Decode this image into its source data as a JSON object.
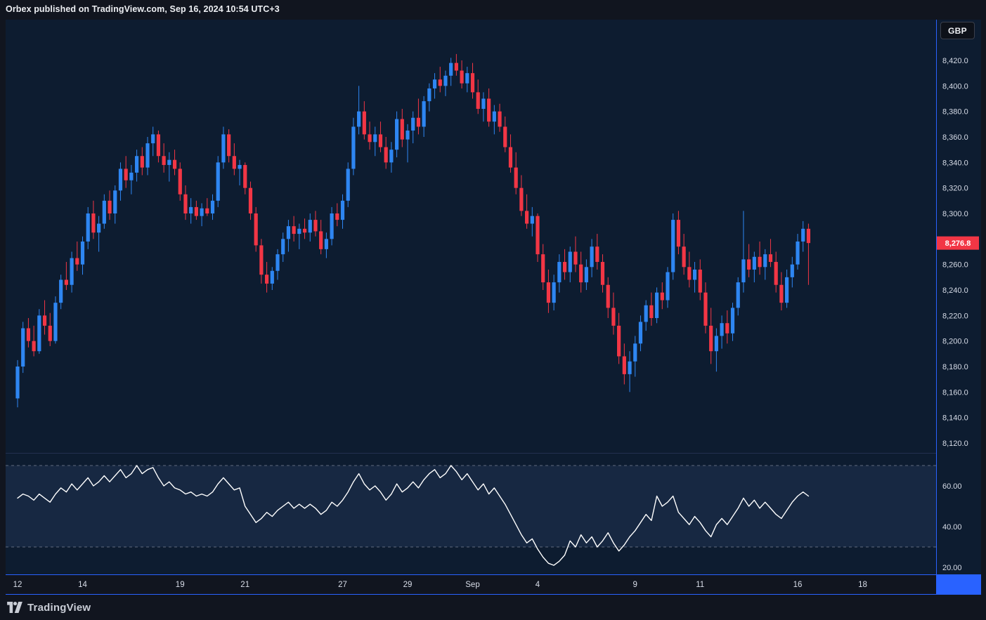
{
  "header": {
    "attribution": "Orbex published on TradingView.com, Sep 16, 2024 10:54 UTC+3"
  },
  "footer": {
    "brand": "TradingView"
  },
  "chart_data": {
    "type": "candlestick",
    "symbol_currency": "GBP",
    "colors": {
      "pane_bg": "#0d1c30",
      "rsi_band": "rgba(86,110,180,0.14)",
      "separator": "#233050",
      "rsi_level": "#757c8f",
      "rsi_line": "#ffffff",
      "up": "#2e86f2",
      "down": "#f23645",
      "axis_blue": "#2962ff",
      "axis_text": "#d8dde8"
    },
    "price_axis": {
      "min": 8120,
      "max": 8420,
      "ticks": [
        {
          "v": 8420,
          "label": "8,420.0"
        },
        {
          "v": 8400,
          "label": "8,400.0"
        },
        {
          "v": 8380,
          "label": "8,380.0"
        },
        {
          "v": 8360,
          "label": "8,360.0"
        },
        {
          "v": 8340,
          "label": "8,340.0"
        },
        {
          "v": 8320,
          "label": "8,320.0"
        },
        {
          "v": 8300,
          "label": "8,300.0"
        },
        {
          "v": 8280,
          "label": "8,280.0"
        },
        {
          "v": 8260,
          "label": "8,260.0"
        },
        {
          "v": 8240,
          "label": "8,240.0"
        },
        {
          "v": 8220,
          "label": "8,220.0"
        },
        {
          "v": 8200,
          "label": "8,200.0"
        },
        {
          "v": 8180,
          "label": "8,180.0"
        },
        {
          "v": 8160,
          "label": "8,160.0"
        },
        {
          "v": 8140,
          "label": "8,140.0"
        },
        {
          "v": 8120,
          "label": "8,120.0"
        }
      ]
    },
    "last_price": {
      "value": 8276.8,
      "label": "8,276.8",
      "direction": "down"
    },
    "time_labels": [
      {
        "text": "12",
        "i": 0
      },
      {
        "text": "14",
        "i": 12
      },
      {
        "text": "19",
        "i": 30
      },
      {
        "text": "21",
        "i": 42
      },
      {
        "text": "27",
        "i": 60
      },
      {
        "text": "29",
        "i": 72
      },
      {
        "text": "Sep",
        "i": 84
      },
      {
        "text": "4",
        "i": 96
      },
      {
        "text": "9",
        "i": 114
      },
      {
        "text": "11",
        "i": 126
      },
      {
        "text": "16",
        "i": 144
      },
      {
        "text": "18",
        "i": 156
      }
    ],
    "candles": [
      [
        8155,
        8185,
        8148,
        8180
      ],
      [
        8180,
        8215,
        8175,
        8210
      ],
      [
        8210,
        8218,
        8195,
        8200
      ],
      [
        8200,
        8212,
        8188,
        8192
      ],
      [
        8192,
        8225,
        8190,
        8220
      ],
      [
        8220,
        8232,
        8205,
        8212
      ],
      [
        8212,
        8222,
        8196,
        8200
      ],
      [
        8200,
        8235,
        8198,
        8230
      ],
      [
        8230,
        8252,
        8225,
        8248
      ],
      [
        8248,
        8262,
        8240,
        8244
      ],
      [
        8244,
        8270,
        8238,
        8265
      ],
      [
        8265,
        8278,
        8255,
        8260
      ],
      [
        8260,
        8282,
        8252,
        8278
      ],
      [
        8278,
        8305,
        8272,
        8300
      ],
      [
        8300,
        8310,
        8280,
        8285
      ],
      [
        8285,
        8298,
        8270,
        8292
      ],
      [
        8292,
        8315,
        8288,
        8310
      ],
      [
        8310,
        8318,
        8295,
        8300
      ],
      [
        8300,
        8322,
        8292,
        8318
      ],
      [
        8318,
        8340,
        8310,
        8335
      ],
      [
        8335,
        8345,
        8320,
        8326
      ],
      [
        8326,
        8338,
        8315,
        8332
      ],
      [
        8332,
        8350,
        8325,
        8345
      ],
      [
        8345,
        8352,
        8330,
        8336
      ],
      [
        8336,
        8360,
        8330,
        8355
      ],
      [
        8355,
        8368,
        8345,
        8362
      ],
      [
        8362,
        8365,
        8340,
        8345
      ],
      [
        8345,
        8355,
        8332,
        8338
      ],
      [
        8338,
        8348,
        8325,
        8342
      ],
      [
        8342,
        8350,
        8330,
        8335
      ],
      [
        8335,
        8340,
        8310,
        8315
      ],
      [
        8315,
        8322,
        8295,
        8300
      ],
      [
        8300,
        8312,
        8292,
        8305
      ],
      [
        8305,
        8310,
        8295,
        8298
      ],
      [
        8298,
        8308,
        8290,
        8304
      ],
      [
        8304,
        8312,
        8298,
        8300
      ],
      [
        8300,
        8315,
        8295,
        8310
      ],
      [
        8310,
        8345,
        8305,
        8340
      ],
      [
        8340,
        8368,
        8335,
        8362
      ],
      [
        8362,
        8366,
        8340,
        8345
      ],
      [
        8345,
        8355,
        8330,
        8335
      ],
      [
        8335,
        8342,
        8322,
        8338
      ],
      [
        8338,
        8340,
        8315,
        8320
      ],
      [
        8320,
        8325,
        8295,
        8300
      ],
      [
        8300,
        8305,
        8270,
        8275
      ],
      [
        8275,
        8280,
        8245,
        8252
      ],
      [
        8252,
        8262,
        8238,
        8245
      ],
      [
        8245,
        8258,
        8240,
        8255
      ],
      [
        8255,
        8272,
        8248,
        8268
      ],
      [
        8268,
        8285,
        8262,
        8280
      ],
      [
        8280,
        8295,
        8270,
        8290
      ],
      [
        8290,
        8298,
        8278,
        8284
      ],
      [
        8284,
        8292,
        8272,
        8288
      ],
      [
        8288,
        8296,
        8280,
        8285
      ],
      [
        8285,
        8300,
        8278,
        8295
      ],
      [
        8295,
        8302,
        8282,
        8286
      ],
      [
        8286,
        8295,
        8268,
        8272
      ],
      [
        8272,
        8285,
        8265,
        8280
      ],
      [
        8280,
        8305,
        8275,
        8300
      ],
      [
        8300,
        8308,
        8290,
        8295
      ],
      [
        8295,
        8315,
        8288,
        8310
      ],
      [
        8310,
        8340,
        8305,
        8335
      ],
      [
        8335,
        8375,
        8330,
        8368
      ],
      [
        8368,
        8400,
        8362,
        8380
      ],
      [
        8380,
        8388,
        8358,
        8362
      ],
      [
        8362,
        8372,
        8350,
        8356
      ],
      [
        8356,
        8368,
        8345,
        8362
      ],
      [
        8362,
        8372,
        8348,
        8352
      ],
      [
        8352,
        8360,
        8335,
        8340
      ],
      [
        8340,
        8356,
        8332,
        8350
      ],
      [
        8350,
        8380,
        8344,
        8374
      ],
      [
        8374,
        8382,
        8352,
        8358
      ],
      [
        8358,
        8370,
        8340,
        8365
      ],
      [
        8365,
        8380,
        8355,
        8375
      ],
      [
        8375,
        8390,
        8362,
        8368
      ],
      [
        8368,
        8392,
        8360,
        8388
      ],
      [
        8388,
        8402,
        8380,
        8398
      ],
      [
        8398,
        8410,
        8390,
        8405
      ],
      [
        8405,
        8415,
        8395,
        8400
      ],
      [
        8400,
        8412,
        8392,
        8408
      ],
      [
        8408,
        8422,
        8400,
        8418
      ],
      [
        8418,
        8425,
        8408,
        8412
      ],
      [
        8412,
        8420,
        8398,
        8402
      ],
      [
        8402,
        8415,
        8395,
        8410
      ],
      [
        8410,
        8418,
        8390,
        8395
      ],
      [
        8395,
        8405,
        8378,
        8382
      ],
      [
        8382,
        8395,
        8372,
        8390
      ],
      [
        8390,
        8398,
        8368,
        8372
      ],
      [
        8372,
        8385,
        8362,
        8380
      ],
      [
        8380,
        8386,
        8364,
        8368
      ],
      [
        8368,
        8376,
        8348,
        8352
      ],
      [
        8352,
        8362,
        8332,
        8336
      ],
      [
        8336,
        8348,
        8315,
        8320
      ],
      [
        8320,
        8330,
        8298,
        8302
      ],
      [
        8302,
        8315,
        8288,
        8292
      ],
      [
        8292,
        8305,
        8282,
        8298
      ],
      [
        8298,
        8300,
        8262,
        8268
      ],
      [
        8268,
        8276,
        8240,
        8246
      ],
      [
        8246,
        8256,
        8222,
        8230
      ],
      [
        8230,
        8252,
        8224,
        8246
      ],
      [
        8246,
        8268,
        8238,
        8262
      ],
      [
        8262,
        8272,
        8248,
        8254
      ],
      [
        8254,
        8274,
        8246,
        8270
      ],
      [
        8270,
        8282,
        8254,
        8260
      ],
      [
        8260,
        8270,
        8238,
        8246
      ],
      [
        8246,
        8264,
        8240,
        8258
      ],
      [
        8258,
        8280,
        8250,
        8274
      ],
      [
        8274,
        8284,
        8256,
        8262
      ],
      [
        8262,
        8268,
        8238,
        8244
      ],
      [
        8244,
        8250,
        8218,
        8226
      ],
      [
        8226,
        8238,
        8205,
        8212
      ],
      [
        8212,
        8222,
        8182,
        8188
      ],
      [
        8188,
        8198,
        8166,
        8174
      ],
      [
        8174,
        8192,
        8160,
        8184
      ],
      [
        8184,
        8204,
        8172,
        8198
      ],
      [
        8198,
        8220,
        8192,
        8215
      ],
      [
        8215,
        8232,
        8208,
        8228
      ],
      [
        8228,
        8238,
        8212,
        8218
      ],
      [
        8218,
        8242,
        8214,
        8238
      ],
      [
        8238,
        8246,
        8225,
        8232
      ],
      [
        8232,
        8258,
        8226,
        8254
      ],
      [
        8254,
        8300,
        8248,
        8295
      ],
      [
        8295,
        8302,
        8268,
        8274
      ],
      [
        8274,
        8284,
        8252,
        8258
      ],
      [
        8258,
        8270,
        8242,
        8248
      ],
      [
        8248,
        8262,
        8238,
        8256
      ],
      [
        8256,
        8264,
        8232,
        8238
      ],
      [
        8238,
        8246,
        8206,
        8212
      ],
      [
        8212,
        8226,
        8182,
        8192
      ],
      [
        8192,
        8210,
        8176,
        8204
      ],
      [
        8204,
        8220,
        8194,
        8214
      ],
      [
        8214,
        8224,
        8198,
        8206
      ],
      [
        8206,
        8230,
        8200,
        8226
      ],
      [
        8226,
        8250,
        8220,
        8246
      ],
      [
        8246,
        8302,
        8238,
        8264
      ],
      [
        8264,
        8276,
        8250,
        8256
      ],
      [
        8256,
        8270,
        8246,
        8266
      ],
      [
        8266,
        8278,
        8252,
        8258
      ],
      [
        8258,
        8272,
        8248,
        8268
      ],
      [
        8268,
        8280,
        8258,
        8262
      ],
      [
        8262,
        8270,
        8238,
        8244
      ],
      [
        8244,
        8254,
        8224,
        8230
      ],
      [
        8230,
        8256,
        8226,
        8250
      ],
      [
        8250,
        8266,
        8242,
        8260
      ],
      [
        8260,
        8284,
        8256,
        8278
      ],
      [
        8278,
        8294,
        8270,
        8288
      ],
      [
        8288,
        8292,
        8244,
        8276.8
      ]
    ],
    "rsi": {
      "levels": [
        70,
        30
      ],
      "ticks": [
        {
          "v": 60,
          "label": "60.00"
        },
        {
          "v": 40,
          "label": "40.00"
        },
        {
          "v": 20,
          "label": "20.00"
        }
      ],
      "values": [
        54,
        56,
        55,
        53,
        56,
        54,
        52,
        56,
        59,
        57,
        61,
        58,
        61,
        64,
        60,
        62,
        65,
        62,
        65,
        68,
        64,
        66,
        70,
        66,
        68,
        69,
        64,
        60,
        62,
        59,
        58,
        56,
        57,
        55,
        56,
        55,
        57,
        61,
        64,
        61,
        58,
        59,
        50,
        46,
        42,
        44,
        47,
        45,
        48,
        50,
        52,
        49,
        51,
        49,
        51,
        49,
        46,
        48,
        52,
        50,
        53,
        57,
        62,
        66,
        61,
        58,
        60,
        57,
        53,
        56,
        61,
        57,
        59,
        62,
        59,
        63,
        66,
        68,
        64,
        66,
        70,
        67,
        63,
        66,
        62,
        58,
        61,
        56,
        59,
        55,
        51,
        46,
        41,
        36,
        32,
        34,
        29,
        25,
        22,
        21,
        23,
        26,
        33,
        30,
        36,
        32,
        35,
        30,
        33,
        37,
        32,
        28,
        31,
        35,
        38,
        42,
        46,
        43,
        55,
        50,
        52,
        55,
        47,
        44,
        41,
        45,
        42,
        38,
        35,
        41,
        44,
        41,
        45,
        49,
        54,
        50,
        53,
        49,
        52,
        49,
        46,
        44,
        48,
        52,
        55,
        57,
        55
      ]
    }
  }
}
